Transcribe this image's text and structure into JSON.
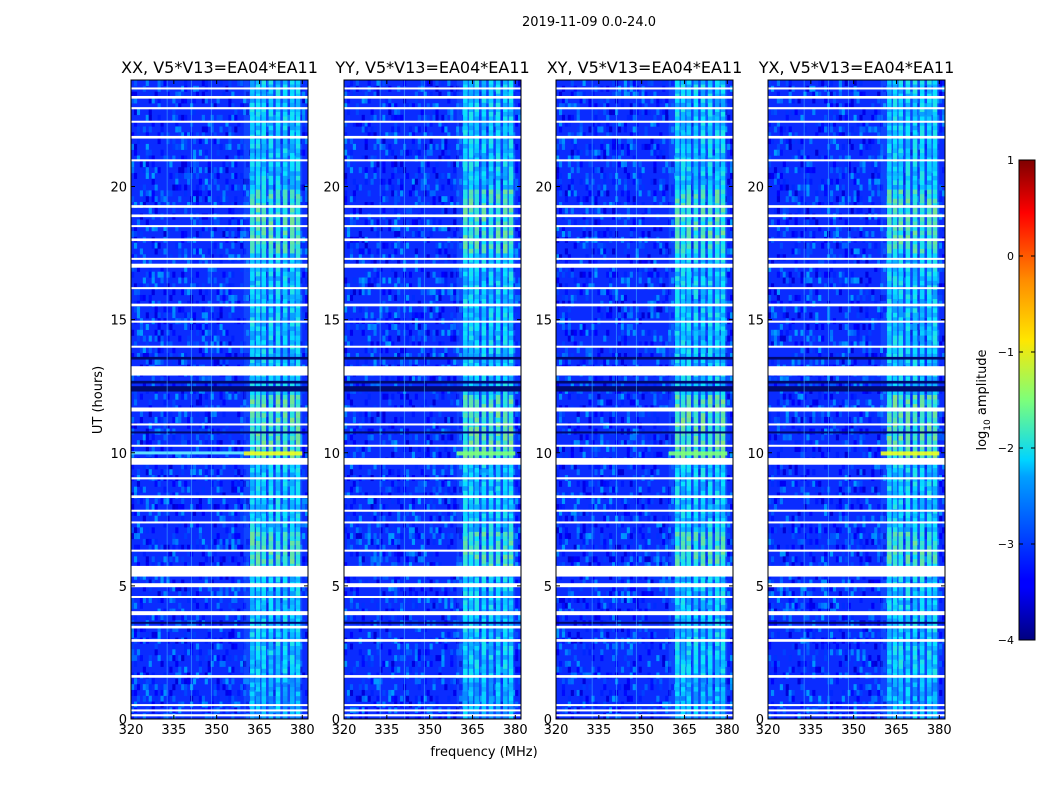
{
  "chart_data": {
    "type": "heatmap",
    "suptitle": "2019-11-09 0.0-24.0",
    "xlabel": "frequency (MHz)",
    "ylabel": "UT (hours)",
    "xlim": [
      320,
      382
    ],
    "ylim": [
      0,
      24
    ],
    "xticks": [
      320,
      335,
      350,
      365,
      380
    ],
    "yticks": [
      0,
      5,
      10,
      15,
      20
    ],
    "panels": [
      {
        "title": "XX, V5*V13=EA04*EA11",
        "pol": "XX"
      },
      {
        "title": "YY, V5*V13=EA04*EA11",
        "pol": "YY"
      },
      {
        "title": "XY, V5*V13=EA04*EA11",
        "pol": "XY"
      },
      {
        "title": "YX, V5*V13=EA04*EA11",
        "pol": "YX"
      }
    ],
    "rfi_band_mhz": [
      359.5,
      380
    ],
    "colorbar": {
      "label": "log10 amplitude",
      "label_parts": {
        "base": "log",
        "sub": "10",
        "rest": " amplitude"
      },
      "range": [
        -4,
        1
      ],
      "ticks": [
        "1",
        "0",
        "−1",
        "−2",
        "−3",
        "−4"
      ],
      "colormap": "jet"
    }
  },
  "colors": {
    "background": "#ffffff",
    "cmap_low": "#00007f",
    "cmap_high": "#7f0000"
  }
}
